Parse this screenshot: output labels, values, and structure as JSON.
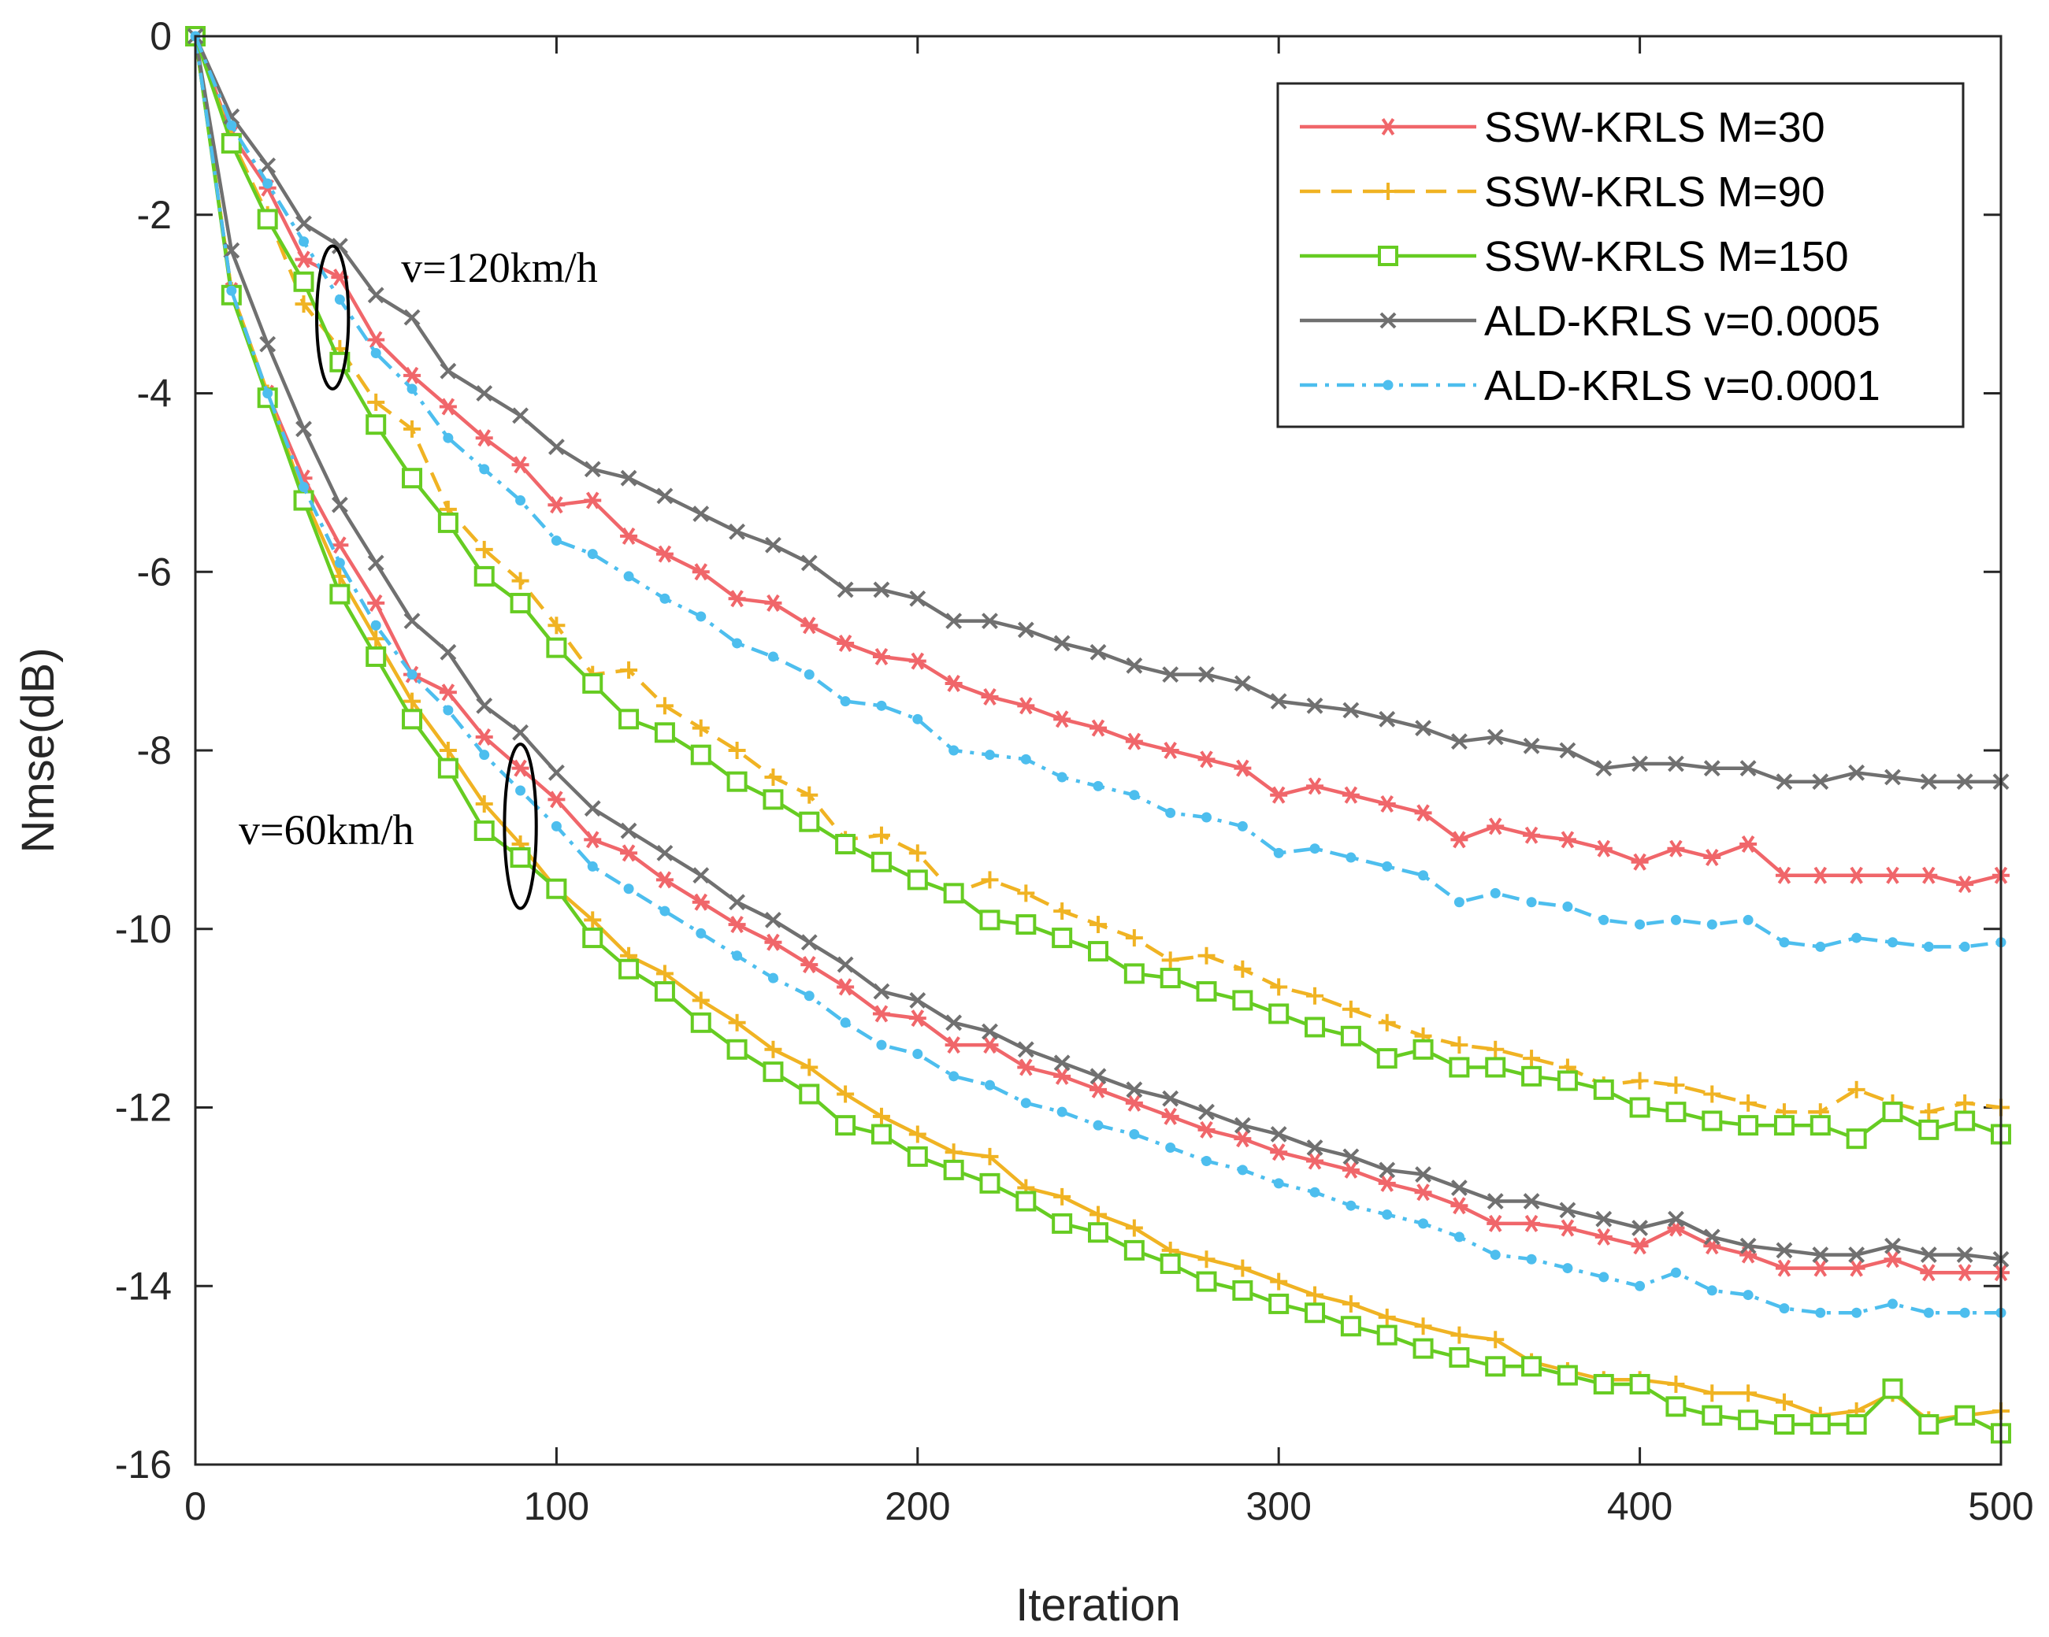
{
  "chart_data": {
    "type": "line",
    "xlabel": "Iteration",
    "ylabel": "Nmse(dB)",
    "xlim": [
      0,
      500
    ],
    "ylim": [
      -16,
      0
    ],
    "xticks": [
      0,
      100,
      200,
      300,
      400,
      500
    ],
    "yticks": [
      0,
      -2,
      -4,
      -6,
      -8,
      -10,
      -12,
      -14,
      -16
    ],
    "xtick_labels": [
      "0",
      "100",
      "200",
      "300",
      "400",
      "500"
    ],
    "ytick_labels": [
      "0",
      "-2",
      "-4",
      "-6",
      "-8",
      "-10",
      "-12",
      "-14",
      "-16"
    ],
    "grid": false,
    "legend_position": "top-right",
    "x": [
      0,
      10,
      20,
      30,
      40,
      50,
      60,
      70,
      80,
      90,
      100,
      110,
      120,
      130,
      140,
      150,
      160,
      170,
      180,
      190,
      200,
      210,
      220,
      230,
      240,
      250,
      260,
      270,
      280,
      290,
      300,
      310,
      320,
      330,
      340,
      350,
      360,
      370,
      380,
      390,
      400,
      410,
      420,
      430,
      440,
      450,
      460,
      470,
      480,
      490,
      500
    ],
    "series": [
      {
        "name": "SSW-KRLS M=30",
        "color": "#f0666a",
        "marker": "asterisk",
        "dash": "solid",
        "group": "v=120km/h",
        "values": [
          0,
          -1.1,
          -1.7,
          -2.5,
          -2.7,
          -3.4,
          -3.8,
          -4.15,
          -4.5,
          -4.8,
          -5.25,
          -5.2,
          -5.6,
          -5.8,
          -6.0,
          -6.3,
          -6.35,
          -6.6,
          -6.8,
          -6.95,
          -7.0,
          -7.25,
          -7.4,
          -7.5,
          -7.65,
          -7.75,
          -7.9,
          -8.0,
          -8.1,
          -8.2,
          -8.5,
          -8.4,
          -8.5,
          -8.6,
          -8.7,
          -9.0,
          -8.85,
          -8.95,
          -9.0,
          -9.1,
          -9.25,
          -9.1,
          -9.2,
          -9.05,
          -9.4,
          -9.4,
          -9.4,
          -9.4,
          -9.4,
          -9.5,
          -9.4
        ]
      },
      {
        "name": "SSW-KRLS M=90",
        "color": "#f0b323",
        "marker": "plus",
        "dash": "dashed",
        "group": "v=120km/h",
        "values": [
          0,
          -1.15,
          -2.0,
          -3.0,
          -3.5,
          -4.1,
          -4.4,
          -5.3,
          -5.75,
          -6.1,
          -6.6,
          -7.15,
          -7.1,
          -7.5,
          -7.75,
          -8.0,
          -8.3,
          -8.5,
          -9.0,
          -8.95,
          -9.15,
          -9.6,
          -9.45,
          -9.6,
          -9.8,
          -9.95,
          -10.1,
          -10.35,
          -10.3,
          -10.45,
          -10.65,
          -10.75,
          -10.9,
          -11.05,
          -11.2,
          -11.3,
          -11.35,
          -11.45,
          -11.55,
          -11.75,
          -11.7,
          -11.75,
          -11.85,
          -11.95,
          -12.05,
          -12.05,
          -11.8,
          -11.95,
          -12.05,
          -11.95,
          -12.0
        ]
      },
      {
        "name": "SSW-KRLS M=150",
        "color": "#66cc22",
        "marker": "square",
        "dash": "solid",
        "group": "v=120km/h",
        "values": [
          0,
          -1.2,
          -2.05,
          -2.75,
          -3.65,
          -4.35,
          -4.95,
          -5.45,
          -6.05,
          -6.35,
          -6.85,
          -7.25,
          -7.65,
          -7.8,
          -8.05,
          -8.35,
          -8.55,
          -8.8,
          -9.05,
          -9.25,
          -9.45,
          -9.6,
          -9.9,
          -9.95,
          -10.1,
          -10.25,
          -10.5,
          -10.55,
          -10.7,
          -10.8,
          -10.95,
          -11.1,
          -11.2,
          -11.45,
          -11.35,
          -11.55,
          -11.55,
          -11.65,
          -11.7,
          -11.8,
          -12.0,
          -12.05,
          -12.15,
          -12.2,
          -12.2,
          -12.2,
          -12.35,
          -12.05,
          -12.25,
          -12.15,
          -12.3
        ]
      },
      {
        "name": "ALD-KRLS v=0.0005",
        "color": "#707070",
        "marker": "x",
        "dash": "solid",
        "group": "v=120km/h",
        "values": [
          0,
          -0.9,
          -1.45,
          -2.1,
          -2.35,
          -2.9,
          -3.15,
          -3.75,
          -4.0,
          -4.25,
          -4.6,
          -4.85,
          -4.95,
          -5.15,
          -5.35,
          -5.55,
          -5.7,
          -5.9,
          -6.2,
          -6.2,
          -6.3,
          -6.55,
          -6.55,
          -6.65,
          -6.8,
          -6.9,
          -7.05,
          -7.15,
          -7.15,
          -7.25,
          -7.45,
          -7.5,
          -7.55,
          -7.65,
          -7.75,
          -7.9,
          -7.85,
          -7.95,
          -8.0,
          -8.2,
          -8.15,
          -8.15,
          -8.2,
          -8.2,
          -8.35,
          -8.35,
          -8.25,
          -8.3,
          -8.35,
          -8.35,
          -8.35
        ]
      },
      {
        "name": "ALD-KRLS v=0.0001",
        "color": "#4dbeee",
        "marker": "dot",
        "dash": "dashdot",
        "group": "v=120km/h",
        "values": [
          0,
          -1.0,
          -1.65,
          -2.3,
          -2.95,
          -3.55,
          -3.95,
          -4.5,
          -4.85,
          -5.2,
          -5.65,
          -5.8,
          -6.05,
          -6.3,
          -6.5,
          -6.8,
          -6.95,
          -7.15,
          -7.45,
          -7.5,
          -7.65,
          -8.0,
          -8.05,
          -8.1,
          -8.3,
          -8.4,
          -8.5,
          -8.7,
          -8.75,
          -8.85,
          -9.15,
          -9.1,
          -9.2,
          -9.3,
          -9.4,
          -9.7,
          -9.6,
          -9.7,
          -9.75,
          -9.9,
          -9.95,
          -9.9,
          -9.95,
          -9.9,
          -10.15,
          -10.2,
          -10.1,
          -10.15,
          -10.2,
          -10.2,
          -10.15
        ]
      },
      {
        "color": "#f0666a",
        "marker": "asterisk",
        "dash": "solid",
        "group": "v=60km/h",
        "values": [
          0,
          -2.85,
          -4.0,
          -4.95,
          -5.7,
          -6.35,
          -7.15,
          -7.35,
          -7.85,
          -8.2,
          -8.55,
          -9.0,
          -9.15,
          -9.45,
          -9.7,
          -9.95,
          -10.15,
          -10.4,
          -10.65,
          -10.95,
          -11.0,
          -11.3,
          -11.3,
          -11.55,
          -11.65,
          -11.8,
          -11.95,
          -12.1,
          -12.25,
          -12.35,
          -12.5,
          -12.6,
          -12.7,
          -12.85,
          -12.95,
          -13.1,
          -13.3,
          -13.3,
          -13.35,
          -13.45,
          -13.55,
          -13.35,
          -13.55,
          -13.65,
          -13.8,
          -13.8,
          -13.8,
          -13.7,
          -13.85,
          -13.85,
          -13.85
        ]
      },
      {
        "color": "#f0b323",
        "marker": "plus",
        "dash": "solid",
        "group": "v=60km/h",
        "values": [
          0,
          -2.85,
          -4.0,
          -5.15,
          -6.05,
          -6.75,
          -7.45,
          -8.0,
          -8.6,
          -9.05,
          -9.55,
          -9.9,
          -10.3,
          -10.5,
          -10.8,
          -11.05,
          -11.35,
          -11.55,
          -11.85,
          -12.1,
          -12.3,
          -12.5,
          -12.55,
          -12.9,
          -13.0,
          -13.2,
          -13.35,
          -13.6,
          -13.7,
          -13.8,
          -13.95,
          -14.1,
          -14.2,
          -14.35,
          -14.45,
          -14.55,
          -14.6,
          -14.85,
          -14.95,
          -15.05,
          -15.05,
          -15.1,
          -15.2,
          -15.2,
          -15.3,
          -15.45,
          -15.4,
          -15.2,
          -15.5,
          -15.45,
          -15.4
        ]
      },
      {
        "color": "#66cc22",
        "marker": "square",
        "dash": "solid",
        "group": "v=60km/h",
        "values": [
          0,
          -2.9,
          -4.05,
          -5.2,
          -6.25,
          -6.95,
          -7.65,
          -8.2,
          -8.9,
          -9.2,
          -9.55,
          -10.1,
          -10.45,
          -10.7,
          -11.05,
          -11.35,
          -11.6,
          -11.85,
          -12.2,
          -12.3,
          -12.55,
          -12.7,
          -12.85,
          -13.05,
          -13.3,
          -13.4,
          -13.6,
          -13.75,
          -13.95,
          -14.05,
          -14.2,
          -14.3,
          -14.45,
          -14.55,
          -14.7,
          -14.8,
          -14.9,
          -14.9,
          -15.0,
          -15.1,
          -15.1,
          -15.35,
          -15.45,
          -15.5,
          -15.55,
          -15.55,
          -15.55,
          -15.15,
          -15.55,
          -15.45,
          -15.65
        ]
      },
      {
        "color": "#707070",
        "marker": "x",
        "dash": "solid",
        "group": "v=60km/h",
        "values": [
          0,
          -2.4,
          -3.45,
          -4.4,
          -5.25,
          -5.9,
          -6.55,
          -6.9,
          -7.5,
          -7.8,
          -8.25,
          -8.65,
          -8.9,
          -9.15,
          -9.4,
          -9.7,
          -9.9,
          -10.15,
          -10.4,
          -10.7,
          -10.8,
          -11.05,
          -11.15,
          -11.35,
          -11.5,
          -11.65,
          -11.8,
          -11.9,
          -12.05,
          -12.2,
          -12.3,
          -12.45,
          -12.55,
          -12.7,
          -12.75,
          -12.9,
          -13.05,
          -13.05,
          -13.15,
          -13.25,
          -13.35,
          -13.25,
          -13.45,
          -13.55,
          -13.6,
          -13.65,
          -13.65,
          -13.55,
          -13.65,
          -13.65,
          -13.7
        ]
      },
      {
        "color": "#4dbeee",
        "marker": "dot",
        "dash": "dashdot",
        "group": "v=60km/h",
        "values": [
          0,
          -2.85,
          -4.0,
          -5.05,
          -5.9,
          -6.6,
          -7.15,
          -7.55,
          -8.05,
          -8.45,
          -8.85,
          -9.3,
          -9.55,
          -9.8,
          -10.05,
          -10.3,
          -10.55,
          -10.75,
          -11.05,
          -11.3,
          -11.4,
          -11.65,
          -11.75,
          -11.95,
          -12.05,
          -12.2,
          -12.3,
          -12.45,
          -12.6,
          -12.7,
          -12.85,
          -12.95,
          -13.1,
          -13.2,
          -13.3,
          -13.45,
          -13.65,
          -13.7,
          -13.8,
          -13.9,
          -14.0,
          -13.85,
          -14.05,
          -14.1,
          -14.25,
          -14.3,
          -14.3,
          -14.2,
          -14.3,
          -14.3,
          -14.3
        ]
      }
    ],
    "annotations": [
      {
        "text": "v=120km/h",
        "x": 57,
        "y": -2.75
      },
      {
        "text": "v=60km/h",
        "x": 12,
        "y": -9.05
      }
    ],
    "ellipses": [
      {
        "cx": 38,
        "cy": -3.15,
        "rx": 4.4,
        "ry": 0.8
      },
      {
        "cx": 90,
        "cy": -8.85,
        "rx": 4.4,
        "ry": 0.92
      }
    ]
  }
}
